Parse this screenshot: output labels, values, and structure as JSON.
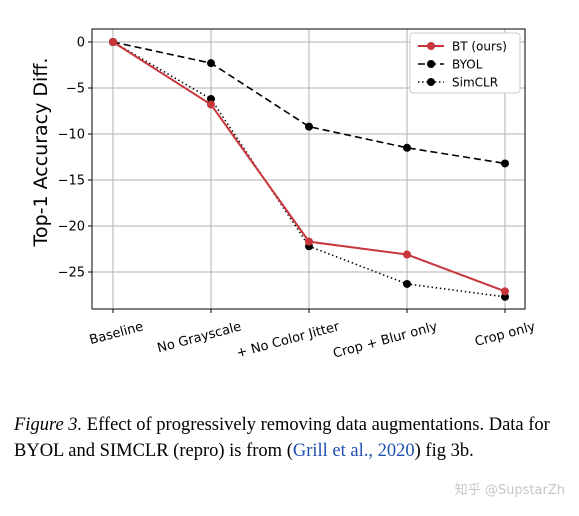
{
  "chart_data": {
    "type": "line",
    "categories": [
      "Baseline",
      "No Grayscale",
      "+ No Color Jitter",
      "Crop + Blur only",
      "Crop only"
    ],
    "ylabel": "Top-1 Accuracy Diff.",
    "ylim": [
      -28.5,
      1.2
    ],
    "yticks": [
      0,
      -5,
      -10,
      -15,
      -20,
      -25
    ],
    "ytick_labels": [
      "0",
      "−5",
      "−10",
      "−15",
      "−20",
      "−25"
    ],
    "grid": true,
    "legend_position": "top-right",
    "series": [
      {
        "name": "BT (ours)",
        "values": [
          0,
          -6.8,
          -21.7,
          -23.1,
          -27.1
        ],
        "color": "#c8363b",
        "style": "solid"
      },
      {
        "name": "BYOL",
        "values": [
          0,
          -2.3,
          -9.2,
          -11.5,
          -13.2
        ],
        "color": "#000000",
        "style": "dashed"
      },
      {
        "name": "SimCLR",
        "values": [
          0,
          -6.2,
          -22.2,
          -26.3,
          -27.7
        ],
        "color": "#000000",
        "style": "dotted"
      }
    ]
  },
  "caption": {
    "label": "Figure 3.",
    "text1": " Effect of progressively removing data augmentations. Data for BYOL and S",
    "simclr_small": "IM",
    "text2": "CLR (repro) is from (",
    "cite_text": "Grill et al., 2020",
    "text3": ") fig 3b."
  },
  "watermark": "知乎 @SupstarZh"
}
